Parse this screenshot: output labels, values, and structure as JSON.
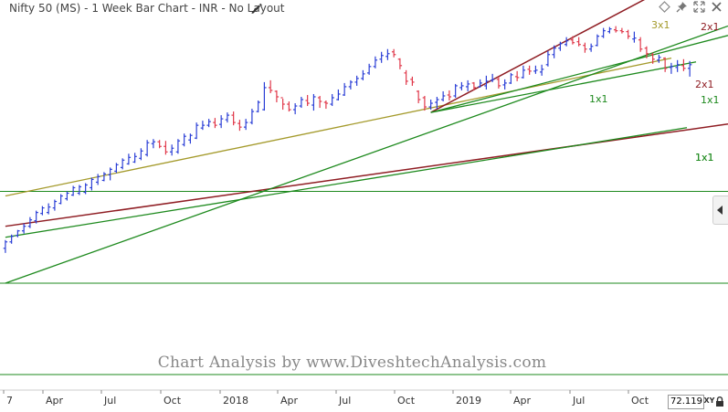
{
  "header": {
    "title": "Nifty 50 (MS) - 1 Week Bar Chart - INR - No Layout"
  },
  "watermark": "Chart Analysis by www.DiveshtechAnalysis.com",
  "value_box": "72.119",
  "xy_label": "XY",
  "colors": {
    "up_bar": "#2b3fd6",
    "down_bar": "#e0384a",
    "neutral_bar": "#d8c200",
    "gann_3x1": "#a49a2b",
    "gann_2x1": "#8f1d23",
    "gann_1x1": "#1e8a1e",
    "horizontal_lines": "#1e8a1e"
  },
  "icons": [
    "edit-icon",
    "diamond-icon",
    "pin-icon",
    "expand-icon",
    "close-icon",
    "chevron-left-icon",
    "lock-icon"
  ],
  "chart_data": {
    "type": "bar",
    "x_tick_labels": [
      "7",
      "Apr",
      "Jul",
      "Oct",
      "2018",
      "Apr",
      "Jul",
      "Oct",
      "2019",
      "Apr",
      "Jul",
      "Oct"
    ],
    "bars": [
      [
        -19,
        0.33,
        0.47,
        0.38,
        0.45
      ],
      [
        -18,
        0.43,
        0.53,
        0.45,
        0.51
      ],
      [
        -17,
        0.5,
        0.58,
        0.52,
        0.57
      ],
      [
        -16,
        0.54,
        0.65,
        0.57,
        0.62
      ],
      [
        -15,
        0.6,
        0.72,
        0.62,
        0.69
      ],
      [
        -14,
        0.65,
        0.79,
        0.68,
        0.77
      ],
      [
        -13,
        0.74,
        0.84,
        0.76,
        0.82
      ],
      [
        -12,
        0.75,
        0.87,
        0.77,
        0.83
      ],
      [
        -11,
        0.79,
        0.91,
        0.82,
        0.89
      ],
      [
        -10,
        0.86,
        0.97,
        0.87,
        0.95
      ],
      [
        -9,
        0.9,
        1.0,
        0.92,
        0.98
      ],
      [
        -8,
        0.95,
        1.06,
        0.96,
        1.04
      ],
      [
        -7,
        0.96,
        1.07,
        0.98,
        1.05
      ],
      [
        -6,
        0.97,
        1.09,
        0.99,
        1.07
      ],
      [
        -5,
        1.01,
        1.15,
        1.04,
        1.13
      ],
      [
        -4,
        1.07,
        1.19,
        1.1,
        1.16
      ],
      [
        -3,
        1.11,
        1.21,
        1.12,
        1.19
      ],
      [
        -2,
        1.12,
        1.26,
        1.18,
        1.24
      ],
      [
        -1,
        1.2,
        1.31,
        1.22,
        1.29
      ],
      [
        0,
        1.24,
        1.36,
        1.26,
        1.34
      ],
      [
        1,
        1.29,
        1.41,
        1.3,
        1.37
      ],
      [
        2,
        1.31,
        1.42,
        1.32,
        1.38
      ],
      [
        3,
        1.34,
        1.47,
        1.36,
        1.44
      ],
      [
        4,
        1.38,
        1.56,
        1.4,
        1.53
      ],
      [
        5,
        1.47,
        1.57,
        1.52,
        1.54
      ],
      [
        6,
        1.47,
        1.56,
        1.54,
        1.49
      ],
      [
        7,
        1.4,
        1.55,
        1.49,
        1.43
      ],
      [
        8,
        1.39,
        1.51,
        1.43,
        1.47
      ],
      [
        9,
        1.41,
        1.57,
        1.43,
        1.55
      ],
      [
        10,
        1.49,
        1.63,
        1.51,
        1.6
      ],
      [
        11,
        1.52,
        1.63,
        1.56,
        1.61
      ],
      [
        12,
        1.57,
        1.75,
        1.58,
        1.72
      ],
      [
        13,
        1.67,
        1.77,
        1.69,
        1.72
      ],
      [
        14,
        1.7,
        1.79,
        1.72,
        1.76
      ],
      [
        15,
        1.69,
        1.8,
        1.75,
        1.72
      ],
      [
        16,
        1.69,
        1.83,
        1.73,
        1.79
      ],
      [
        17,
        1.75,
        1.86,
        1.78,
        1.83
      ],
      [
        18,
        1.72,
        1.87,
        1.83,
        1.75
      ],
      [
        19,
        1.66,
        1.78,
        1.74,
        1.7
      ],
      [
        20,
        1.67,
        1.79,
        1.7,
        1.75
      ],
      [
        21,
        1.73,
        1.9,
        1.75,
        1.87
      ],
      [
        22,
        1.86,
        1.99,
        1.87,
        1.97
      ],
      [
        23,
        1.88,
        2.19,
        1.89,
        2.13
      ],
      [
        24,
        2.07,
        2.21,
        2.13,
        2.1
      ],
      [
        25,
        1.97,
        2.1,
        2.09,
        2.03
      ],
      [
        26,
        1.89,
        2.01,
        2.02,
        1.95
      ],
      [
        27,
        1.87,
        1.98,
        1.95,
        1.89
      ],
      [
        28,
        1.84,
        1.96,
        1.89,
        1.93
      ],
      [
        29,
        1.91,
        2.03,
        1.93,
        2.0
      ],
      [
        30,
        1.93,
        2.05,
        1.99,
        1.96
      ],
      [
        31,
        1.88,
        2.06,
        1.94,
        2.03
      ],
      [
        32,
        1.91,
        2.04,
        2.02,
        1.98
      ],
      [
        33,
        1.9,
        1.99,
        1.97,
        1.96
      ],
      [
        34,
        1.93,
        2.06,
        1.95,
        2.02
      ],
      [
        35,
        1.99,
        2.11,
        2.0,
        2.06
      ],
      [
        36,
        2.04,
        2.18,
        2.05,
        2.14
      ],
      [
        37,
        2.11,
        2.21,
        2.14,
        2.19
      ],
      [
        38,
        2.15,
        2.26,
        2.19,
        2.23
      ],
      [
        39,
        2.21,
        2.32,
        2.23,
        2.28
      ],
      [
        40,
        2.27,
        2.39,
        2.29,
        2.36
      ],
      [
        41,
        2.34,
        2.47,
        2.36,
        2.43
      ],
      [
        42,
        2.4,
        2.52,
        2.44,
        2.48
      ],
      [
        43,
        2.43,
        2.55,
        2.47,
        2.5
      ],
      [
        44,
        2.46,
        2.55,
        2.52,
        2.49
      ],
      [
        45,
        2.33,
        2.45,
        2.44,
        2.37
      ],
      [
        46,
        2.16,
        2.32,
        2.29,
        2.2
      ],
      [
        47,
        2.15,
        2.25,
        2.22,
        2.19
      ],
      [
        48,
        1.96,
        2.1,
        2.09,
        2.0
      ],
      [
        49,
        1.88,
        2.04,
        2.02,
        1.92
      ],
      [
        50,
        1.89,
        2.0,
        1.92,
        1.96
      ],
      [
        51,
        1.9,
        2.03,
        1.97,
        2.0
      ],
      [
        52,
        1.98,
        2.09,
        2.0,
        2.04
      ],
      [
        53,
        1.99,
        2.1,
        2.05,
        2.03
      ],
      [
        54,
        2.02,
        2.17,
        2.04,
        2.15
      ],
      [
        55,
        2.1,
        2.19,
        2.13,
        2.15
      ],
      [
        56,
        2.09,
        2.21,
        2.14,
        2.17
      ],
      [
        57,
        2.1,
        2.19,
        2.18,
        2.13
      ],
      [
        58,
        2.13,
        2.22,
        2.14,
        2.18
      ],
      [
        59,
        2.11,
        2.26,
        2.15,
        2.2
      ],
      [
        60,
        2.19,
        2.28,
        2.21,
        2.22
      ],
      [
        61,
        2.12,
        2.25,
        2.22,
        2.15
      ],
      [
        62,
        2.11,
        2.22,
        2.16,
        2.18
      ],
      [
        63,
        2.17,
        2.29,
        2.18,
        2.27
      ],
      [
        64,
        2.2,
        2.31,
        2.25,
        2.24
      ],
      [
        65,
        2.23,
        2.37,
        2.24,
        2.32
      ],
      [
        66,
        2.27,
        2.37,
        2.33,
        2.31
      ],
      [
        67,
        2.28,
        2.37,
        2.31,
        2.32
      ],
      [
        68,
        2.26,
        2.38,
        2.3,
        2.33
      ],
      [
        69,
        2.36,
        2.53,
        2.38,
        2.49
      ],
      [
        70,
        2.45,
        2.59,
        2.49,
        2.56
      ],
      [
        71,
        2.53,
        2.63,
        2.56,
        2.61
      ],
      [
        72,
        2.58,
        2.68,
        2.6,
        2.64
      ],
      [
        73,
        2.6,
        2.69,
        2.65,
        2.62
      ],
      [
        74,
        2.58,
        2.68,
        2.63,
        2.6
      ],
      [
        75,
        2.51,
        2.62,
        2.59,
        2.55
      ],
      [
        76,
        2.52,
        2.61,
        2.55,
        2.58
      ],
      [
        77,
        2.58,
        2.71,
        2.59,
        2.69
      ],
      [
        78,
        2.67,
        2.78,
        2.69,
        2.75
      ],
      [
        79,
        2.72,
        2.79,
        2.74,
        2.77
      ],
      [
        80,
        2.73,
        2.8,
        2.76,
        2.75
      ],
      [
        81,
        2.72,
        2.78,
        2.75,
        2.74
      ],
      [
        82,
        2.66,
        2.76,
        2.74,
        2.69
      ],
      [
        83,
        2.62,
        2.74,
        2.66,
        2.67
      ],
      [
        84,
        2.52,
        2.68,
        2.65,
        2.55
      ],
      [
        85,
        2.45,
        2.58,
        2.56,
        2.5
      ],
      [
        86,
        2.39,
        2.51,
        2.49,
        2.44
      ],
      [
        87,
        2.4,
        2.49,
        2.43,
        2.46
      ],
      [
        88,
        2.3,
        2.46,
        2.45,
        2.34
      ],
      [
        89,
        2.28,
        2.4,
        2.35,
        2.36
      ],
      [
        90,
        2.3,
        2.43,
        2.35,
        2.38
      ],
      [
        91,
        2.31,
        2.44,
        2.37,
        2.34
      ],
      [
        92,
        2.25,
        2.42,
        2.34,
        2.38
      ],
      [
        93,
        2.3,
        2.48,
        2.31,
        2.46
      ]
    ],
    "gann_lines": [
      {
        "label": "3x1",
        "anchor": [
          -19,
          0.95
        ],
        "slope": 0.0139
      },
      {
        "label": "2x1",
        "anchor": [
          -19,
          0.62
        ],
        "slope": 0.0095
      },
      {
        "label": "2x1",
        "anchor": [
          50,
          1.86
        ],
        "slope": 0.0355
      },
      {
        "label": "1x1",
        "anchor": [
          50,
          1.86
        ],
        "slope": 0.0174
      },
      {
        "label": "1x1",
        "anchor": [
          50,
          1.86
        ],
        "slope": 0.0128
      },
      {
        "label": "1x1",
        "anchor": [
          -19,
          0.5
        ],
        "slope": 0.0108
      },
      {
        "label": "1x1",
        "anchor": [
          -19,
          0.0
        ],
        "slope": 0.0239
      }
    ],
    "horizontal_lines": [
      1.0,
      0.0
    ],
    "grid": false
  }
}
